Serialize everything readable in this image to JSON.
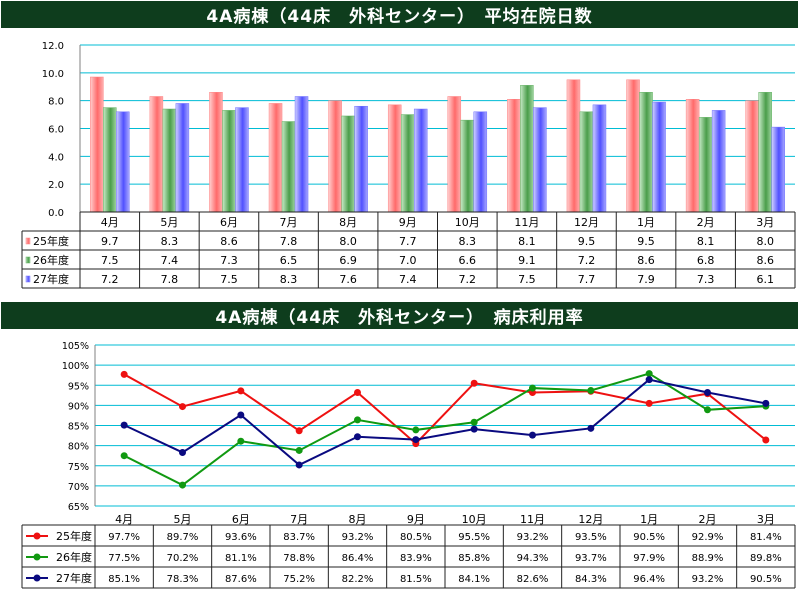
{
  "chart_data": [
    {
      "type": "bar",
      "title": "4A病棟（44床　外科センター）　平均在院日数",
      "categories": [
        "4月",
        "5月",
        "6月",
        "7月",
        "8月",
        "9月",
        "10月",
        "11月",
        "12月",
        "1月",
        "2月",
        "3月"
      ],
      "series": [
        {
          "name": "25年度",
          "values": [
            9.7,
            8.3,
            8.6,
            7.8,
            8.0,
            7.7,
            8.3,
            8.1,
            9.5,
            9.5,
            8.1,
            8.0
          ]
        },
        {
          "name": "26年度",
          "values": [
            7.5,
            7.4,
            7.3,
            6.5,
            6.9,
            7.0,
            6.6,
            9.1,
            7.2,
            8.6,
            6.8,
            8.6
          ]
        },
        {
          "name": "27年度",
          "values": [
            7.2,
            7.8,
            7.5,
            8.3,
            7.6,
            7.4,
            7.2,
            7.5,
            7.7,
            7.9,
            7.3,
            6.1
          ]
        }
      ],
      "ylim": [
        0,
        12
      ],
      "yticks": [
        "0.0",
        "2.0",
        "4.0",
        "6.0",
        "8.0",
        "10.0",
        "12.0"
      ],
      "display_values": [
        [
          "9.7",
          "8.3",
          "8.6",
          "7.8",
          "8.0",
          "7.7",
          "8.3",
          "8.1",
          "9.5",
          "9.5",
          "8.1",
          "8.0"
        ],
        [
          "7.5",
          "7.4",
          "7.3",
          "6.5",
          "6.9",
          "7.0",
          "6.6",
          "9.1",
          "7.2",
          "8.6",
          "6.8",
          "8.6"
        ],
        [
          "7.2",
          "7.8",
          "7.5",
          "8.3",
          "7.6",
          "7.4",
          "7.2",
          "7.5",
          "7.7",
          "7.9",
          "7.3",
          "6.1"
        ]
      ],
      "grid": true,
      "legend": "data-table",
      "colors": [
        "#ff8080",
        "#60b060",
        "#7070ff"
      ]
    },
    {
      "type": "line",
      "title": "4A病棟（44床　外科センター）　病床利用率",
      "categories": [
        "4月",
        "5月",
        "6月",
        "7月",
        "8月",
        "9月",
        "10月",
        "11月",
        "12月",
        "1月",
        "2月",
        "3月"
      ],
      "series": [
        {
          "name": "25年度",
          "values": [
            97.7,
            89.7,
            93.6,
            83.7,
            93.2,
            80.5,
            95.5,
            93.2,
            93.5,
            90.5,
            92.9,
            81.4
          ]
        },
        {
          "name": "26年度",
          "values": [
            77.5,
            70.2,
            81.1,
            78.8,
            86.4,
            83.9,
            85.8,
            94.3,
            93.7,
            97.9,
            88.9,
            89.8
          ]
        },
        {
          "name": "27年度",
          "values": [
            85.1,
            78.3,
            87.6,
            75.2,
            82.2,
            81.5,
            84.1,
            82.6,
            84.3,
            96.4,
            93.2,
            90.5
          ]
        }
      ],
      "ylim": [
        65,
        105
      ],
      "yticks": [
        "65%",
        "70%",
        "75%",
        "80%",
        "85%",
        "90%",
        "95%",
        "100%",
        "105%"
      ],
      "display_values": [
        [
          "97.7%",
          "89.7%",
          "93.6%",
          "83.7%",
          "93.2%",
          "80.5%",
          "95.5%",
          "93.2%",
          "93.5%",
          "90.5%",
          "92.9%",
          "81.4%"
        ],
        [
          "77.5%",
          "70.2%",
          "81.1%",
          "78.8%",
          "86.4%",
          "83.9%",
          "85.8%",
          "94.3%",
          "93.7%",
          "97.9%",
          "88.9%",
          "89.8%"
        ],
        [
          "85.1%",
          "78.3%",
          "87.6%",
          "75.2%",
          "82.2%",
          "81.5%",
          "84.1%",
          "82.6%",
          "84.3%",
          "96.4%",
          "93.2%",
          "90.5%"
        ]
      ],
      "grid": true,
      "legend": "data-table",
      "colors": [
        "#ee1111",
        "#119911",
        "#0a0a80"
      ]
    }
  ]
}
